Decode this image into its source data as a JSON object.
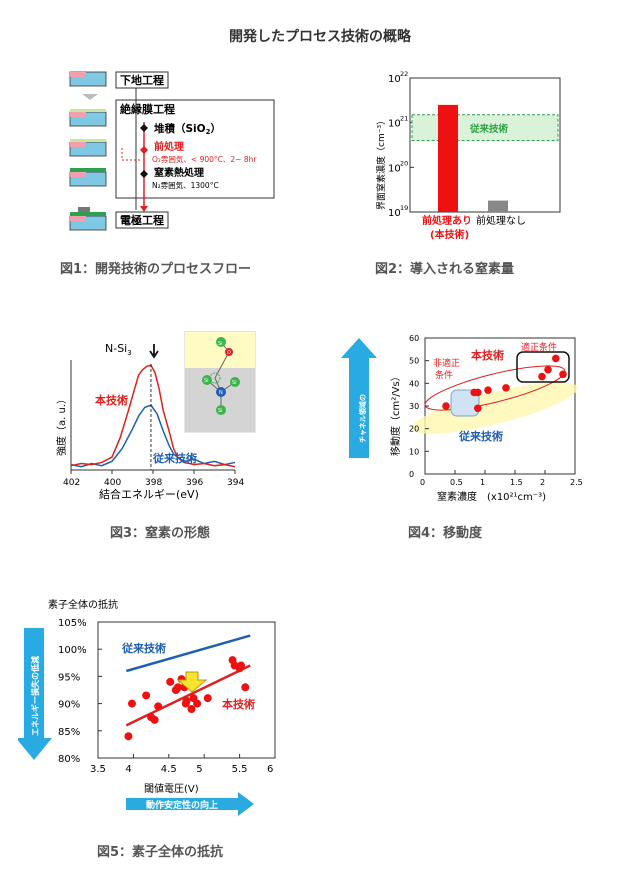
{
  "page": {
    "title": "開発したプロセス技術の概略"
  },
  "fig1": {
    "caption": "図1：開発技術のプロセスフロー",
    "step_base": "下地工程",
    "step_insul": "絶縁膜工程",
    "sub_deposit": "堆積（SiO",
    "sub_deposit_sub": "2",
    "sub_deposit_end": "）",
    "sub_pre": "前処理",
    "sub_pre_cond": "O₂雰囲気、< 900°C、2~ 8hr",
    "sub_anneal": "窒素熱処理",
    "sub_anneal_cond": "N₂雰囲気、1300°C",
    "step_electrode": "電極工程"
  },
  "fig2": {
    "caption": "図2：導入される窒素量",
    "ylabel": "界面窒素濃度（cm⁻³）",
    "ticks": [
      "10",
      "10",
      "10",
      "10"
    ],
    "tick_exp": [
      "22",
      "21",
      "20",
      "19"
    ],
    "band_label": "従来技術",
    "bar1_label": "前処理あり",
    "bar1_label2": "(本技術)",
    "bar2_label": "前処理なし",
    "colors": {
      "bar1": "#ee1111",
      "bar2": "#888888",
      "band": "#2ea043"
    }
  },
  "fig3": {
    "caption": "図3：窒素の形態",
    "peak_label": "N-Si",
    "peak_sub": "3",
    "ylabel": "強度（a. u.）",
    "xlabel": "結合エネルギー(eV)",
    "xticks": [
      "402",
      "400",
      "398",
      "396",
      "394"
    ],
    "label_new": "本技術",
    "label_old": "従来技術",
    "atom_si": "Si",
    "atom_o": "O",
    "atom_n": "N"
  },
  "fig4": {
    "caption": "図4：移動度",
    "arrow_text1": "チャネル領域の",
    "arrow_text2": "抵抗の低減",
    "ylabel": "移動度（cm²/Vs）",
    "xlabel": "窒素濃度　(x10²¹cm⁻³)",
    "label_new": "本技術",
    "label_old": "従来技術",
    "label_opt": "適正条件",
    "label_nonopt1": "非適正",
    "label_nonopt2": "条件",
    "yticks": [
      "60",
      "50",
      "40",
      "30",
      "20",
      "10",
      "0"
    ],
    "xticks": [
      "0",
      "0.5",
      "1",
      "1.5",
      "2",
      "2.5"
    ]
  },
  "fig5": {
    "caption": "図5：素子全体の抵抗",
    "top_label": "素子全体の抵抗",
    "arrow_left": "エネルギー損失の低減",
    "arrow_bottom": "動作安定性の向上",
    "xlabel": "閾値電圧(V)",
    "label_old": "従来技術",
    "label_new": "本技術",
    "yticks": [
      "105%",
      "100%",
      "95%",
      "90%",
      "85%",
      "80%"
    ],
    "xticks": [
      "3.5",
      "4",
      "4.5",
      "5",
      "5.5",
      "6"
    ]
  },
  "chart_data": [
    {
      "type": "bar",
      "categories": [
        "前処理あり (本技術)",
        "前処理なし"
      ],
      "values": [
        2.5e+21,
        1.8e+19
      ],
      "log_scale": true,
      "ylabel": "界面窒素濃度（cm⁻³）",
      "ylim": [
        1e+19,
        1e+22
      ],
      "band_range": [
        4e+20,
        1.5e+21
      ]
    },
    {
      "type": "line",
      "xlabel": "結合エネルギー(eV)",
      "ylabel": "強度（a. u.）",
      "xlim": [
        402,
        394
      ],
      "series": [
        {
          "name": "本技術",
          "color": "#e0201a",
          "x": [
            402,
            401.5,
            401,
            400.5,
            400,
            399.6,
            399.2,
            398.9,
            398.7,
            398.5,
            398.3,
            398.1,
            397.9,
            397.7,
            397.5,
            397.2,
            397,
            396.8,
            396.5,
            396.2,
            396,
            395.5,
            395,
            394.5,
            394
          ],
          "y": [
            0.04,
            0.06,
            0.05,
            0.07,
            0.12,
            0.3,
            0.55,
            0.75,
            0.88,
            0.93,
            0.96,
            0.97,
            0.9,
            0.75,
            0.55,
            0.35,
            0.2,
            0.12,
            0.07,
            0.06,
            0.05,
            0.06,
            0.04,
            0.05,
            0.03
          ]
        },
        {
          "name": "従来技術",
          "color": "#1f5fb0",
          "x": [
            402,
            401.5,
            401,
            400.5,
            400,
            399.5,
            399,
            398.7,
            398.4,
            398.1,
            397.8,
            397.5,
            397.2,
            397,
            396.7,
            396.4,
            396,
            395.5,
            395,
            394.5,
            394
          ],
          "y": [
            0.05,
            0.03,
            0.06,
            0.04,
            0.08,
            0.2,
            0.38,
            0.5,
            0.58,
            0.6,
            0.52,
            0.36,
            0.22,
            0.15,
            0.1,
            0.08,
            0.1,
            0.06,
            0.08,
            0.05,
            0.07
          ]
        }
      ]
    },
    {
      "type": "scatter",
      "xlabel": "窒素濃度　(x10²¹cm⁻³)",
      "ylabel": "移動度（cm²/Vs）",
      "xlim": [
        0,
        2.5
      ],
      "ylim": [
        0,
        60
      ],
      "series": [
        {
          "name": "本技術",
          "x": [
            0.35,
            0.82,
            0.88,
            1.05,
            1.35,
            1.95,
            2.05,
            2.18,
            2.3,
            0.88
          ],
          "y": [
            30,
            36,
            36,
            37,
            38,
            43,
            46,
            51,
            44,
            29
          ]
        }
      ]
    },
    {
      "type": "scatter",
      "xlabel": "閾値電圧(V)",
      "ylabel": "素子全体の抵抗",
      "xlim": [
        3.5,
        6
      ],
      "ylim": [
        80,
        105
      ],
      "series": [
        {
          "name": "本技術",
          "x": [
            3.93,
            3.98,
            4.18,
            4.25,
            4.3,
            4.35,
            4.52,
            4.6,
            4.63,
            4.68,
            4.72,
            4.74,
            4.75,
            4.82,
            4.85,
            4.9,
            5.05,
            5.4,
            5.43,
            5.5,
            5.52,
            5.58
          ],
          "y": [
            84,
            90,
            91.5,
            87.5,
            87,
            89.5,
            94,
            92.5,
            93,
            94.5,
            93,
            90,
            90.5,
            89,
            91,
            90,
            91,
            98,
            97,
            96.5,
            97,
            93
          ]
        }
      ],
      "trend_new": {
        "x": [
          3.9,
          5.65
        ],
        "y": [
          86,
          97
        ]
      },
      "trend_old": {
        "x": [
          3.9,
          5.65
        ],
        "y": [
          96,
          102.5
        ]
      }
    }
  ]
}
